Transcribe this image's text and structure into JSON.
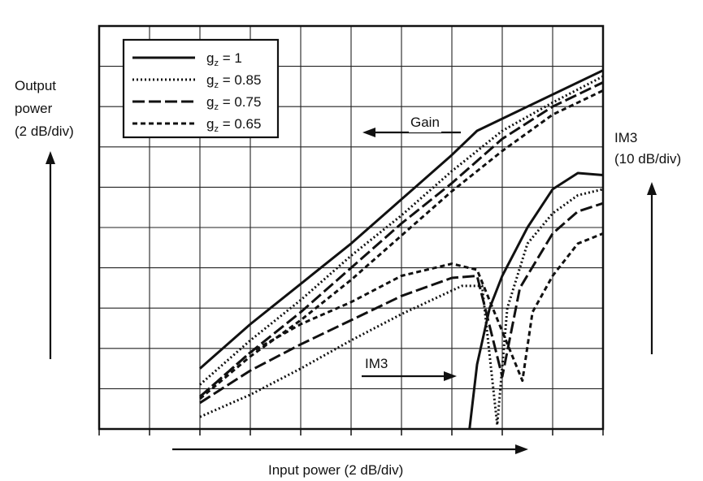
{
  "chart_data": {
    "type": "line",
    "xlabel": "Input power (2 dB/div)",
    "ylabel": [
      "Output",
      "power",
      "(2 dB/div)"
    ],
    "y2label": [
      "IM3",
      "(10 dB/div)"
    ],
    "xlim": [
      0,
      10
    ],
    "ylim": [
      0,
      10
    ],
    "grid": true,
    "legend_position": "top-left",
    "annotations": {
      "gain": "Gain",
      "im3": "IM3"
    },
    "series": [
      {
        "name": "g_z = 1",
        "legend_value": "1",
        "dash": "solid",
        "gain": [
          [
            2.0,
            1.5
          ],
          [
            3.0,
            2.6
          ],
          [
            4.0,
            3.6
          ],
          [
            5.0,
            4.6
          ],
          [
            6.0,
            5.7
          ],
          [
            7.0,
            6.8
          ],
          [
            7.5,
            7.4
          ],
          [
            8.5,
            8.0
          ],
          [
            10.0,
            8.9
          ]
        ],
        "im3": [
          [
            7.35,
            0.0
          ],
          [
            7.5,
            1.6
          ],
          [
            7.75,
            3.0
          ],
          [
            8.0,
            3.8
          ],
          [
            8.5,
            5.0
          ],
          [
            9.0,
            5.95
          ],
          [
            9.5,
            6.35
          ],
          [
            10.0,
            6.3
          ]
        ]
      },
      {
        "name": "g_z = 0.85",
        "legend_value": "0.85",
        "dash": "dotted",
        "gain": [
          [
            2.0,
            1.1
          ],
          [
            3.0,
            2.2
          ],
          [
            4.0,
            3.2
          ],
          [
            5.0,
            4.3
          ],
          [
            6.0,
            5.3
          ],
          [
            7.0,
            6.4
          ],
          [
            8.0,
            7.4
          ],
          [
            9.0,
            8.1
          ],
          [
            10.0,
            8.75
          ]
        ],
        "im3": [
          [
            2.0,
            0.3
          ],
          [
            3.0,
            0.85
          ],
          [
            4.0,
            1.5
          ],
          [
            5.0,
            2.2
          ],
          [
            6.0,
            2.85
          ],
          [
            7.2,
            3.55
          ],
          [
            7.6,
            3.55
          ],
          [
            7.9,
            0.1
          ],
          [
            8.1,
            3.0
          ],
          [
            8.5,
            4.6
          ],
          [
            9.0,
            5.35
          ],
          [
            9.5,
            5.8
          ],
          [
            10.0,
            5.95
          ]
        ]
      },
      {
        "name": "g_z = 0.75",
        "legend_value": "0.75",
        "dash": "long-dash",
        "gain": [
          [
            2.0,
            0.8
          ],
          [
            3.0,
            1.9
          ],
          [
            4.0,
            2.9
          ],
          [
            5.0,
            4.0
          ],
          [
            6.0,
            5.1
          ],
          [
            7.0,
            6.1
          ],
          [
            8.0,
            7.2
          ],
          [
            9.0,
            8.0
          ],
          [
            10.0,
            8.6
          ]
        ],
        "im3": [
          [
            2.0,
            0.65
          ],
          [
            3.0,
            1.45
          ],
          [
            4.0,
            2.1
          ],
          [
            5.0,
            2.7
          ],
          [
            6.0,
            3.3
          ],
          [
            7.0,
            3.75
          ],
          [
            7.5,
            3.8
          ],
          [
            8.0,
            1.3
          ],
          [
            8.35,
            3.5
          ],
          [
            9.0,
            4.85
          ],
          [
            9.5,
            5.4
          ],
          [
            10.0,
            5.6
          ]
        ]
      },
      {
        "name": "g_z = 0.65",
        "legend_value": "0.65",
        "dash": "short-dash",
        "gain": [
          [
            2.0,
            0.75
          ],
          [
            3.0,
            1.8
          ],
          [
            4.0,
            2.7
          ],
          [
            5.0,
            3.7
          ],
          [
            6.0,
            4.8
          ],
          [
            7.0,
            5.9
          ],
          [
            8.0,
            6.9
          ],
          [
            9.0,
            7.8
          ],
          [
            10.0,
            8.4
          ]
        ],
        "im3": [
          [
            2.0,
            0.8
          ],
          [
            3.0,
            1.9
          ],
          [
            4.0,
            2.6
          ],
          [
            5.0,
            3.15
          ],
          [
            6.0,
            3.8
          ],
          [
            7.0,
            4.1
          ],
          [
            7.5,
            3.95
          ],
          [
            8.4,
            1.2
          ],
          [
            8.6,
            2.9
          ],
          [
            9.0,
            3.8
          ],
          [
            9.5,
            4.6
          ],
          [
            10.0,
            4.85
          ]
        ]
      }
    ]
  }
}
